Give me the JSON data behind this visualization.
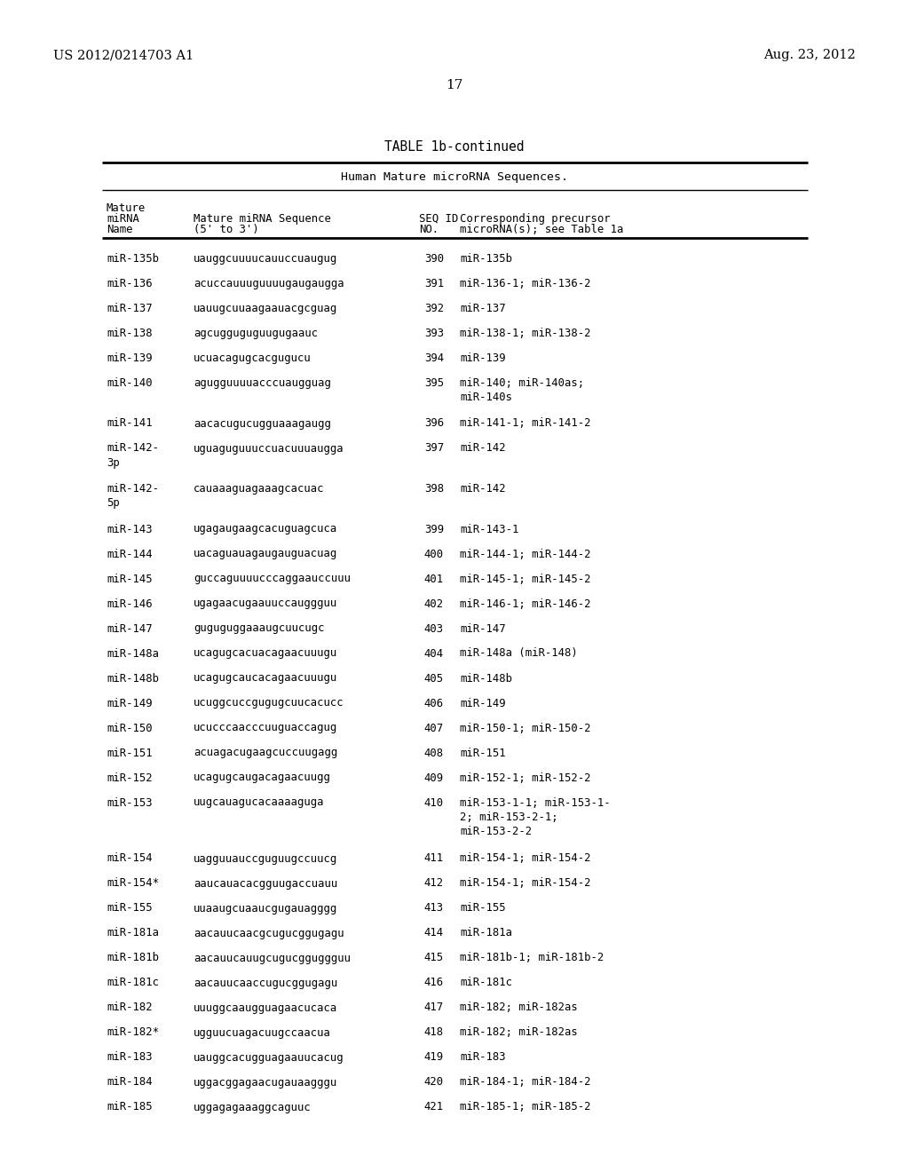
{
  "header_left": "US 2012/0214703 A1",
  "header_right": "Aug. 23, 2012",
  "page_number": "17",
  "table_title": "TABLE 1b-continued",
  "table_subtitle": "Human Mature microRNA Sequences.",
  "rows": [
    [
      "miR-135b",
      "uauggcuuuucauuccuaugug",
      "390",
      "miR-135b"
    ],
    [
      "miR-136",
      "acuccauuuguuuugaugaugga",
      "391",
      "miR-136-1; miR-136-2"
    ],
    [
      "miR-137",
      "uauugcuuaagaauacgcguag",
      "392",
      "miR-137"
    ],
    [
      "miR-138",
      "agcugguguguugugaauc",
      "393",
      "miR-138-1; miR-138-2"
    ],
    [
      "miR-139",
      "ucuacagugcacgugucu",
      "394",
      "miR-139"
    ],
    [
      "miR-140",
      "agugguuuuacccuaugguag",
      "395",
      "miR-140; miR-140as;\nmiR-140s"
    ],
    [
      "miR-141",
      "aacacugucugguaaagaugg",
      "396",
      "miR-141-1; miR-141-2"
    ],
    [
      "miR-142-\n3p",
      "uguaguguuuccuacuuuaugga",
      "397",
      "miR-142"
    ],
    [
      "miR-142-\n5p",
      "cauaaaguagaaagcacuac",
      "398",
      "miR-142"
    ],
    [
      "miR-143",
      "ugagaugaagcacuguagcuca",
      "399",
      "miR-143-1"
    ],
    [
      "miR-144",
      "uacaguauagaugauguacuag",
      "400",
      "miR-144-1; miR-144-2"
    ],
    [
      "miR-145",
      "guccaguuuucccaggaauccuuu",
      "401",
      "miR-145-1; miR-145-2"
    ],
    [
      "miR-146",
      "ugagaacugaauuccauggguu",
      "402",
      "miR-146-1; miR-146-2"
    ],
    [
      "miR-147",
      "guguguggaaaugcuucugc",
      "403",
      "miR-147"
    ],
    [
      "miR-148a",
      "ucagugcacuacagaacuuugu",
      "404",
      "miR-148a (miR-148)"
    ],
    [
      "miR-148b",
      "ucagugcaucacagaacuuugu",
      "405",
      "miR-148b"
    ],
    [
      "miR-149",
      "ucuggcuccgugugcuucacucc",
      "406",
      "miR-149"
    ],
    [
      "miR-150",
      "ucucccaacccuuguaccagug",
      "407",
      "miR-150-1; miR-150-2"
    ],
    [
      "miR-151",
      "acuagacugaagcuccuugagg",
      "408",
      "miR-151"
    ],
    [
      "miR-152",
      "ucagugcaugacagaacuugg",
      "409",
      "miR-152-1; miR-152-2"
    ],
    [
      "miR-153",
      "uugcauagucacaaaaguga",
      "410",
      "miR-153-1-1; miR-153-1-\n2; miR-153-2-1;\nmiR-153-2-2"
    ],
    [
      "miR-154",
      "uagguuauccguguugccuucg",
      "411",
      "miR-154-1; miR-154-2"
    ],
    [
      "miR-154*",
      "aaucauacacgguugaccuauu",
      "412",
      "miR-154-1; miR-154-2"
    ],
    [
      "miR-155",
      "uuaaugcuaaucgugauagggg",
      "413",
      "miR-155"
    ],
    [
      "miR-181a",
      "aacauucaacgcugucggugagu",
      "414",
      "miR-181a"
    ],
    [
      "miR-181b",
      "aacauucauugcugucgguggguu",
      "415",
      "miR-181b-1; miR-181b-2"
    ],
    [
      "miR-181c",
      "aacauucaaccugucggugagu",
      "416",
      "miR-181c"
    ],
    [
      "miR-182",
      "uuuggcaaugguagaacucaca",
      "417",
      "miR-182; miR-182as"
    ],
    [
      "miR-182*",
      "ugguucuagacuugccaacua",
      "418",
      "miR-182; miR-182as"
    ],
    [
      "miR-183",
      "uauggcacugguagaauucacug",
      "419",
      "miR-183"
    ],
    [
      "miR-184",
      "uggacggagaacugauaagggu",
      "420",
      "miR-184-1; miR-184-2"
    ],
    [
      "miR-185",
      "uggagagaaaggcaguuc",
      "421",
      "miR-185-1; miR-185-2"
    ]
  ],
  "bg_color": "#ffffff",
  "text_color": "#000000"
}
